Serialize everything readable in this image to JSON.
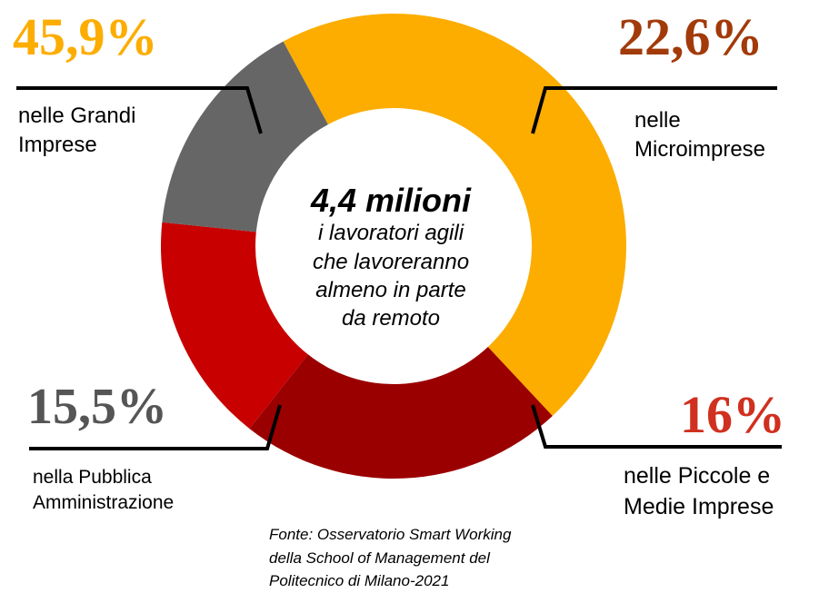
{
  "chart_data": {
    "type": "pie",
    "title": "",
    "center": {
      "value": "4,4 milioni",
      "lines": [
        "i lavoratori agili",
        "che lavoreranno",
        "almeno in parte",
        "da remoto"
      ]
    },
    "slices": [
      {
        "value": 45.9,
        "percent_label": "45,9%",
        "label_lines": [
          "nelle Grandi",
          "Imprese"
        ],
        "color": "#FCAD00",
        "label_color": "#FCAD00"
      },
      {
        "value": 22.6,
        "percent_label": "22,6%",
        "label_lines": [
          "nelle",
          "Microimprese"
        ],
        "color": "#9B0000",
        "label_color": "#A23A0A"
      },
      {
        "value": 16.0,
        "percent_label": "16%",
        "label_lines": [
          "nelle Piccole e",
          "Medie Imprese"
        ],
        "color": "#C80000",
        "label_color": "#D0301F"
      },
      {
        "value": 15.5,
        "percent_label": "15,5%",
        "label_lines": [
          "nella Pubblica",
          "Amministrazione"
        ],
        "color": "#666666",
        "label_color": "#555555"
      }
    ]
  },
  "source": {
    "lines": [
      "Fonte: Osservatorio Smart Working",
      "della School of Management del",
      "Politecnico di Milano-2021"
    ]
  }
}
